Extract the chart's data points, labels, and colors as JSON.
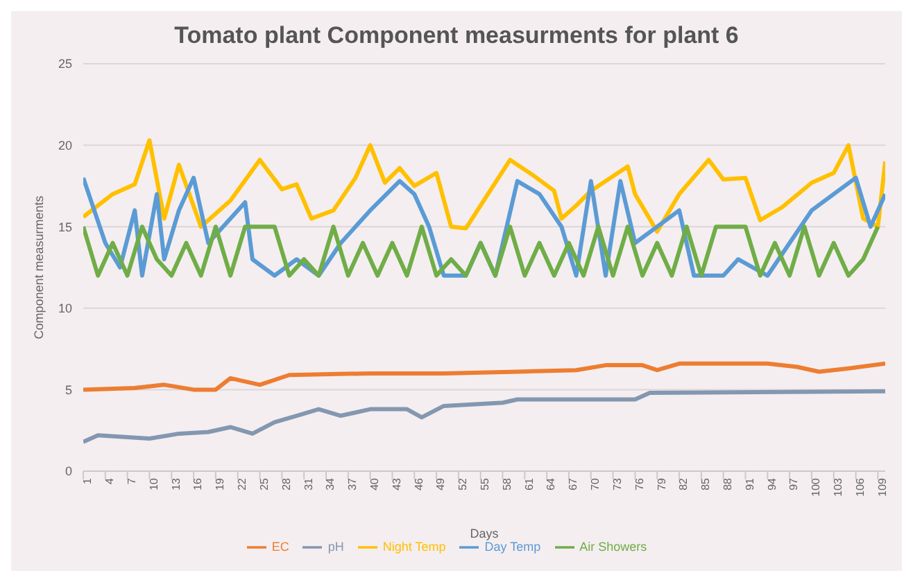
{
  "chart_data": {
    "type": "line",
    "title": "Tomato plant Component measurments for plant 6",
    "xlabel": "Days",
    "ylabel": "Component measurments",
    "xlim": [
      1,
      110
    ],
    "xticks": [
      1,
      4,
      7,
      10,
      13,
      16,
      19,
      22,
      25,
      28,
      31,
      34,
      37,
      40,
      43,
      46,
      49,
      52,
      55,
      58,
      61,
      64,
      67,
      70,
      73,
      76,
      79,
      82,
      85,
      88,
      91,
      94,
      97,
      100,
      103,
      106,
      109
    ],
    "ylim": [
      0,
      25
    ],
    "yticks": [
      0,
      5,
      10,
      15,
      20,
      25
    ],
    "grid": "y",
    "legend": "bottom",
    "marker": "none",
    "line_style": "solid",
    "series": [
      {
        "name": "EC",
        "color": "#ed7d31",
        "x": [
          1,
          8,
          12,
          16,
          19,
          21,
          25,
          29,
          40,
          50,
          60,
          68,
          72,
          77,
          79,
          82,
          94,
          98,
          101,
          105,
          110
        ],
        "values": [
          5.0,
          5.1,
          5.3,
          5.0,
          5.0,
          5.7,
          5.3,
          5.9,
          6.0,
          6.0,
          6.1,
          6.2,
          6.5,
          6.5,
          6.2,
          6.6,
          6.6,
          6.4,
          6.1,
          6.3,
          6.6
        ]
      },
      {
        "name": "pH",
        "color": "#8497b0",
        "x": [
          1,
          3,
          10,
          14,
          18,
          21,
          24,
          27,
          30,
          33,
          36,
          40,
          45,
          47,
          50,
          58,
          60,
          76,
          78,
          110
        ],
        "values": [
          1.8,
          2.2,
          2.0,
          2.3,
          2.4,
          2.7,
          2.3,
          3.0,
          3.4,
          3.8,
          3.4,
          3.8,
          3.8,
          3.3,
          4.0,
          4.2,
          4.4,
          4.4,
          4.8,
          4.9
        ]
      },
      {
        "name": "Night Temp",
        "color": "#ffc000",
        "x": [
          1,
          5,
          8,
          10,
          12,
          14,
          17,
          21,
          25,
          28,
          30,
          32,
          35,
          38,
          40,
          42,
          44,
          46,
          49,
          51,
          53,
          56,
          59,
          62,
          65,
          66,
          68,
          70,
          75,
          76,
          79,
          82,
          86,
          88,
          91,
          93,
          96,
          100,
          103,
          105,
          107,
          109,
          110
        ],
        "values": [
          15.6,
          17,
          17.6,
          20.3,
          15.5,
          18.8,
          15,
          16.6,
          19.1,
          17.3,
          17.6,
          15.5,
          16,
          18,
          20,
          17.7,
          18.6,
          17.5,
          18.3,
          15,
          14.9,
          17,
          19.1,
          18.2,
          17.2,
          15.5,
          16.3,
          17.2,
          18.7,
          17,
          14.7,
          17,
          19.1,
          17.9,
          18,
          15.4,
          16.2,
          17.7,
          18.3,
          20,
          15.5,
          15,
          19
        ]
      },
      {
        "name": "Day Temp",
        "color": "#5b9bd5",
        "x": [
          1,
          4,
          6,
          8,
          9,
          11,
          12,
          14,
          16,
          18,
          20,
          23,
          24,
          27,
          30,
          33,
          36,
          40,
          44,
          46,
          48,
          50,
          53,
          55,
          57,
          60,
          63,
          66,
          68,
          70,
          72,
          74,
          76,
          79,
          82,
          84,
          88,
          90,
          94,
          97,
          100,
          103,
          106,
          108,
          110
        ],
        "values": [
          18,
          14,
          12.5,
          16,
          12,
          17,
          13,
          16,
          18,
          14,
          15,
          16.5,
          13,
          12,
          13,
          12,
          14,
          16,
          17.8,
          17,
          15,
          12,
          12,
          14,
          12,
          17.8,
          17,
          15,
          12,
          17.8,
          12,
          17.8,
          14,
          15,
          16,
          12,
          12,
          13,
          12,
          14,
          16,
          17,
          18,
          15,
          17
        ]
      },
      {
        "name": "Air Showers",
        "color": "#70ad47",
        "x": [
          1,
          3,
          5,
          7,
          9,
          11,
          13,
          15,
          17,
          19,
          21,
          23,
          25,
          27,
          29,
          31,
          33,
          35,
          37,
          39,
          41,
          43,
          45,
          47,
          49,
          51,
          53,
          55,
          57,
          59,
          61,
          63,
          65,
          67,
          69,
          71,
          73,
          75,
          77,
          79,
          81,
          83,
          85,
          87,
          89,
          91,
          93,
          95,
          97,
          99,
          101,
          103,
          105,
          107,
          109
        ],
        "values": [
          15,
          12,
          14,
          12,
          15,
          13,
          12,
          14,
          12,
          15,
          12,
          15,
          15,
          15,
          12,
          13,
          12,
          15,
          12,
          14,
          12,
          14,
          12,
          15,
          12,
          13,
          12,
          14,
          12,
          15,
          12,
          14,
          12,
          14,
          12,
          15,
          12,
          15,
          12,
          14,
          12,
          15,
          12,
          15,
          15,
          15,
          12,
          14,
          12,
          15,
          12,
          14,
          12,
          13,
          15
        ]
      }
    ]
  }
}
